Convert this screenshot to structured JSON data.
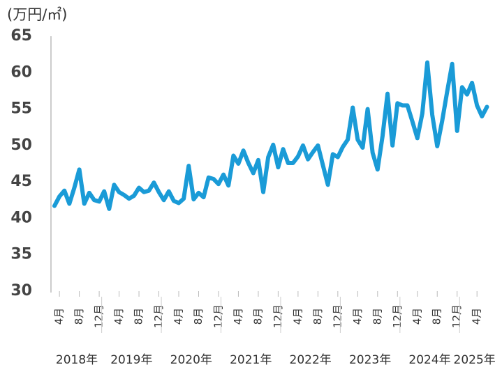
{
  "chart_data": {
    "type": "line",
    "y_label": "(万円/㎡)",
    "categories": [
      null,
      "4月",
      null,
      null,
      null,
      "8月",
      null,
      null,
      null,
      "12月",
      null,
      null,
      null,
      "4月",
      null,
      null,
      null,
      "8月",
      null,
      null,
      null,
      "12月",
      null,
      null,
      null,
      "4月",
      null,
      null,
      null,
      "8月",
      null,
      null,
      null,
      "12月",
      null,
      null,
      null,
      "4月",
      null,
      null,
      null,
      "8月",
      null,
      null,
      null,
      "12月",
      null,
      null,
      null,
      "4月",
      null,
      null,
      null,
      "8月",
      null,
      null,
      null,
      "12月",
      null,
      null,
      null,
      "4月",
      null,
      null,
      null,
      "8月",
      null,
      null,
      null,
      "12月",
      null,
      null,
      null,
      "4月",
      null,
      null,
      null,
      "8月",
      null,
      null,
      null,
      "12月",
      null,
      null,
      null,
      "4月",
      null,
      null
    ],
    "year_labels": [
      "2018年",
      "2019年",
      "2020年",
      "2021年",
      "2022年",
      "2023年",
      "2024年",
      "2025年"
    ],
    "series": [
      {
        "color": "#1a9bd7",
        "values": [
          41.7,
          43.0,
          43.8,
          42.0,
          44.2,
          46.7,
          42.0,
          43.5,
          42.5,
          42.3,
          43.7,
          41.3,
          44.6,
          43.6,
          43.2,
          42.7,
          43.1,
          44.2,
          43.6,
          43.8,
          44.9,
          43.6,
          42.5,
          43.7,
          42.4,
          42.1,
          42.7,
          47.2,
          42.6,
          43.5,
          42.9,
          45.6,
          45.4,
          44.7,
          46.0,
          44.5,
          48.6,
          47.5,
          49.3,
          47.6,
          46.2,
          48.0,
          43.6,
          48.4,
          50.1,
          47.0,
          49.5,
          47.6,
          47.6,
          48.5,
          50.0,
          48.1,
          49.1,
          50.0,
          47.3,
          44.6,
          48.8,
          48.4,
          49.8,
          50.8,
          55.2,
          50.8,
          49.7,
          55.0,
          49.0,
          46.7,
          51.3,
          57.1,
          50.0,
          55.8,
          55.5,
          55.5,
          53.3,
          51.0,
          54.4,
          61.4,
          54.2,
          49.9,
          53.4,
          57.4,
          61.2,
          52.0,
          58.0,
          57.0,
          58.6,
          55.5,
          54.0,
          55.3
        ]
      }
    ],
    "ylim": [
      30,
      65
    ],
    "yticks": [
      30,
      35,
      40,
      45,
      50,
      55,
      60,
      65
    ]
  }
}
